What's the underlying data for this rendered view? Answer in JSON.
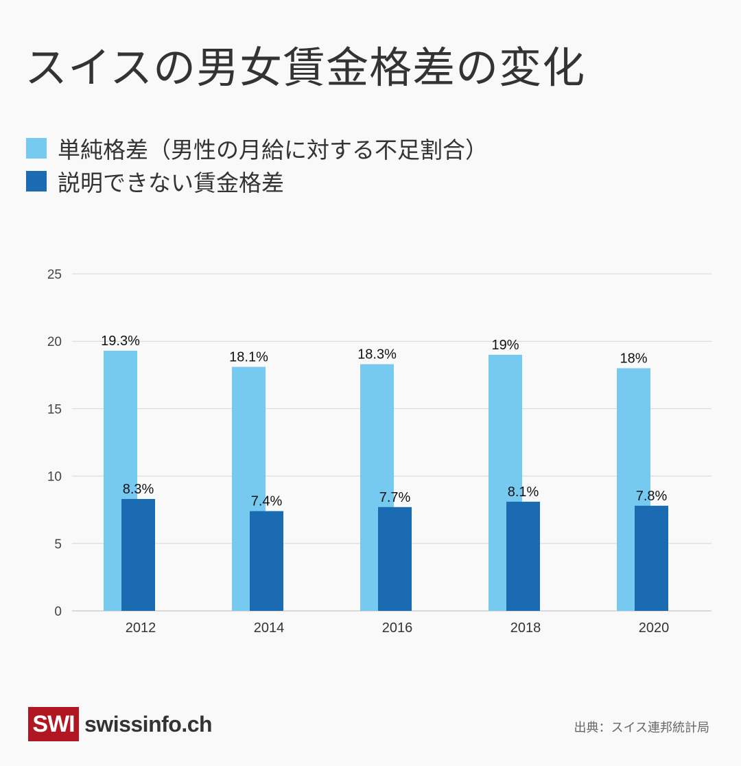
{
  "title": "スイスの男女賃金格差の変化",
  "source": "出典：スイス連邦統計局",
  "logo": {
    "mark": "SWI",
    "text": "swissinfo.ch"
  },
  "colors": {
    "raw_gap": "#76c9ef",
    "unexplained_gap": "#1b6bb3",
    "logo": "#b11623"
  },
  "chart_data": {
    "type": "bar",
    "title": "スイスの男女賃金格差の変化",
    "categories": [
      "2012",
      "2014",
      "2016",
      "2018",
      "2020"
    ],
    "series": [
      {
        "name": "単純格差（男性の月給に対する不足割合）",
        "values": [
          19.3,
          18.1,
          18.3,
          19,
          18
        ],
        "labels": [
          "19.3%",
          "18.1%",
          "18.3%",
          "19%",
          "18%"
        ],
        "color": "#76c9ef"
      },
      {
        "name": "説明できない賃金格差",
        "values": [
          8.3,
          7.4,
          7.7,
          8.1,
          7.8
        ],
        "labels": [
          "8.3%",
          "7.4%",
          "7.7%",
          "8.1%",
          "7.8%"
        ],
        "color": "#1b6bb3"
      }
    ],
    "ylim": [
      0,
      25
    ],
    "yticks": [
      0,
      5,
      10,
      15,
      20,
      25
    ],
    "grid": true,
    "legend_placement": "top-left",
    "xlabel": "",
    "ylabel": ""
  }
}
